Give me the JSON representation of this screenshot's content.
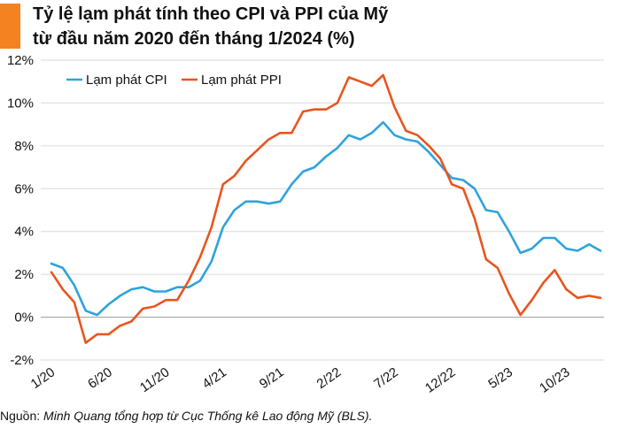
{
  "header": {
    "title_line1": "Tỷ lệ lạm phát tính theo CPI và PPI của Mỹ",
    "title_line2": "từ đầu năm 2020 đến tháng 1/2024 (%)",
    "accent_color": "#f58220"
  },
  "footer": {
    "source_label": "Nguồn:",
    "source_text": "Minh Quang tổng hợp từ Cục Thống kê Lao động Mỹ (BLS)."
  },
  "chart_data": {
    "type": "line",
    "title": "Tỷ lệ lạm phát tính theo CPI và PPI của Mỹ từ đầu năm 2020 đến tháng 1/2024 (%)",
    "xlabel": "",
    "ylabel": "",
    "ylim": [
      -2,
      12
    ],
    "yticks": [
      -2,
      0,
      2,
      4,
      6,
      8,
      10,
      12
    ],
    "ytick_labels": [
      "-2%",
      "0%",
      "2%",
      "4%",
      "6%",
      "8%",
      "10%",
      "12%"
    ],
    "x": [
      "1/20",
      "2/20",
      "3/20",
      "4/20",
      "5/20",
      "6/20",
      "7/20",
      "8/20",
      "9/20",
      "10/20",
      "11/20",
      "12/20",
      "1/21",
      "2/21",
      "3/21",
      "4/21",
      "5/21",
      "6/21",
      "7/21",
      "8/21",
      "9/21",
      "10/21",
      "11/21",
      "12/21",
      "1/22",
      "2/22",
      "3/22",
      "4/22",
      "5/22",
      "6/22",
      "7/22",
      "8/22",
      "9/22",
      "10/22",
      "11/22",
      "12/22",
      "1/23",
      "2/23",
      "3/23",
      "4/23",
      "5/23",
      "6/23",
      "7/23",
      "8/23",
      "9/23",
      "10/23",
      "11/23",
      "12/23",
      "1/24"
    ],
    "xtick_labels": [
      "1/20",
      "6/20",
      "11/20",
      "4/21",
      "9/21",
      "2/22",
      "7/22",
      "12/22",
      "5/23",
      "10/23"
    ],
    "xtick_indices": [
      0,
      5,
      10,
      15,
      20,
      25,
      30,
      35,
      40,
      45
    ],
    "grid": "horizontal",
    "legend_position": "top-left",
    "series": [
      {
        "name": "Lạm phát CPI",
        "color": "#2ea3dc",
        "values": [
          2.5,
          2.3,
          1.5,
          0.3,
          0.1,
          0.6,
          1.0,
          1.3,
          1.4,
          1.2,
          1.2,
          1.4,
          1.4,
          1.7,
          2.6,
          4.2,
          5.0,
          5.4,
          5.4,
          5.3,
          5.4,
          6.2,
          6.8,
          7.0,
          7.5,
          7.9,
          8.5,
          8.3,
          8.6,
          9.1,
          8.5,
          8.3,
          8.2,
          7.7,
          7.1,
          6.5,
          6.4,
          6.0,
          5.0,
          4.9,
          4.0,
          3.0,
          3.2,
          3.7,
          3.7,
          3.2,
          3.1,
          3.4,
          3.1
        ]
      },
      {
        "name": "Lạm phát PPI",
        "color": "#e8551f",
        "values": [
          2.1,
          1.3,
          0.7,
          -1.2,
          -0.8,
          -0.8,
          -0.4,
          -0.2,
          0.4,
          0.5,
          0.8,
          0.8,
          1.7,
          2.8,
          4.2,
          6.2,
          6.6,
          7.3,
          7.8,
          8.3,
          8.6,
          8.6,
          9.6,
          9.7,
          9.7,
          10.0,
          11.2,
          11.0,
          10.8,
          11.3,
          9.8,
          8.7,
          8.5,
          8.0,
          7.4,
          6.2,
          6.0,
          4.6,
          2.7,
          2.3,
          1.1,
          0.1,
          0.8,
          1.6,
          2.2,
          1.3,
          0.9,
          1.0,
          0.9
        ]
      }
    ]
  }
}
